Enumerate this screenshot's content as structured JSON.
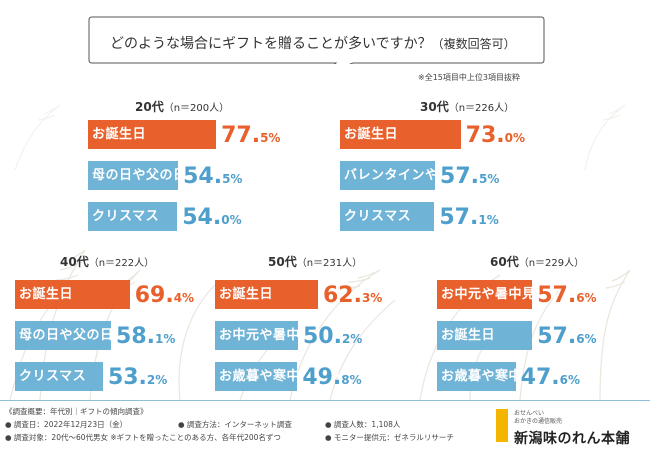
{
  "title": {
    "question": "どのような場合にギフトを贈ることが多いですか？",
    "question_note": "（複数回答可）",
    "note": "※全15項目中上位3項目抜粋"
  },
  "colors": {
    "orange": "#e8612c",
    "blue": "#6fb3d6",
    "value_blue": "#4f9fcc"
  },
  "chart_data": {
    "type": "bar",
    "title": "どのような場合にギフトを贈ることが多いですか？（複数回答可）",
    "unit": "%",
    "groups": [
      {
        "age": "20代",
        "n": "（n＝200人）",
        "items": [
          {
            "label": "お誕生日",
            "value": 77.5,
            "int": "77.",
            "dec": "5",
            "unit": "%",
            "rank": 1
          },
          {
            "label": "母の日や父の日",
            "value": 54.5,
            "int": "54.",
            "dec": "5",
            "unit": "%",
            "rank": 2
          },
          {
            "label": "クリスマス",
            "value": 54.0,
            "int": "54.",
            "dec": "0",
            "unit": "%",
            "rank": 3
          }
        ]
      },
      {
        "age": "30代",
        "n": "（n＝226人）",
        "items": [
          {
            "label": "お誕生日",
            "value": 73.0,
            "int": "73.",
            "dec": "0",
            "unit": "%",
            "rank": 1
          },
          {
            "label": "バレンタインやホワイトデー",
            "value": 57.5,
            "int": "57.",
            "dec": "5",
            "unit": "%",
            "rank": 2
          },
          {
            "label": "クリスマス",
            "value": 57.1,
            "int": "57.",
            "dec": "1",
            "unit": "%",
            "rank": 3
          }
        ]
      },
      {
        "age": "40代",
        "n": "（n＝222人）",
        "items": [
          {
            "label": "お誕生日",
            "value": 69.4,
            "int": "69.",
            "dec": "4",
            "unit": "%",
            "rank": 1
          },
          {
            "label": "母の日や父の日",
            "value": 58.1,
            "int": "58.",
            "dec": "1",
            "unit": "%",
            "rank": 2
          },
          {
            "label": "クリスマス",
            "value": 53.2,
            "int": "53.",
            "dec": "2",
            "unit": "%",
            "rank": 3
          }
        ]
      },
      {
        "age": "50代",
        "n": "（n＝231人）",
        "items": [
          {
            "label": "お誕生日",
            "value": 62.3,
            "int": "62.",
            "dec": "3",
            "unit": "%",
            "rank": 1
          },
          {
            "label": "お中元や暑中見舞い",
            "value": 50.2,
            "int": "50.",
            "dec": "2",
            "unit": "%",
            "rank": 2
          },
          {
            "label": "お歳暮や寒中見舞い",
            "value": 49.8,
            "int": "49.",
            "dec": "8",
            "unit": "%",
            "rank": 3
          }
        ]
      },
      {
        "age": "60代",
        "n": "（n＝229人）",
        "items": [
          {
            "label": "お中元や暑中見舞い",
            "value": 57.6,
            "int": "57.",
            "dec": "6",
            "unit": "%",
            "rank": 1
          },
          {
            "label": "お誕生日",
            "value": 57.6,
            "int": "57.",
            "dec": "6",
            "unit": "%",
            "rank": 2
          },
          {
            "label": "お歳暮や寒中見舞い",
            "value": 47.6,
            "int": "47.",
            "dec": "6",
            "unit": "%",
            "rank": 3
          }
        ]
      }
    ]
  },
  "footer": {
    "overview": "《調査概要：年代別｜ギフトの傾向調査》",
    "date": "● 調査日：2022年12月23日（金）",
    "method": "● 調査方法：インターネット調査",
    "count": "● 調査人数：1,108人",
    "target": "● 調査対象：20代～60代男女 ※ギフトを贈ったことのある方、各年代200名ずつ",
    "monitor": "● モニター提供元：ゼネラルリサーチ"
  },
  "logo": {
    "line1": "おせんべい",
    "line2": "おかきの通信販売",
    "name": "新潟味のれん本舗"
  }
}
